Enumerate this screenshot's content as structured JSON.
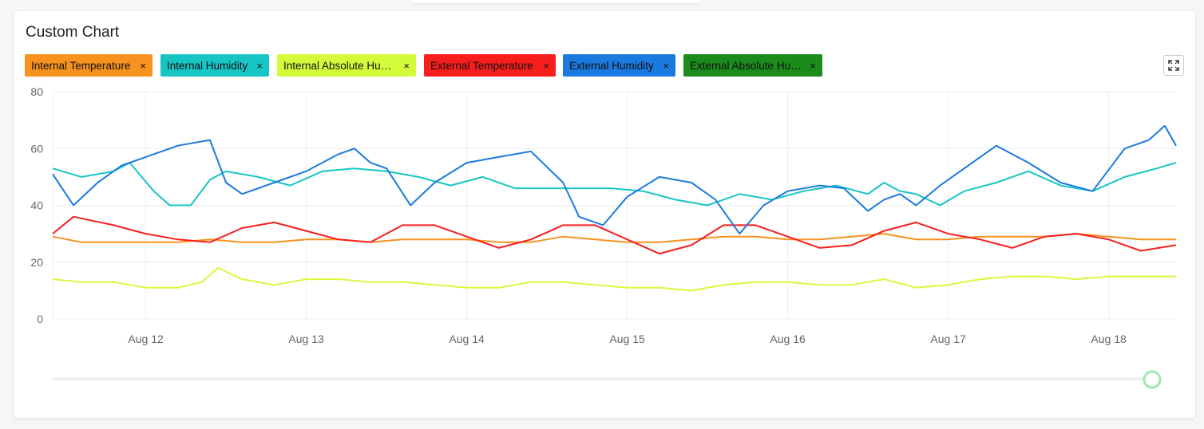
{
  "card": {
    "title": "Custom Chart"
  },
  "chips": [
    {
      "label": "Internal Temperature",
      "close": "×",
      "color": "#f7921e"
    },
    {
      "label": "Internal Humidity",
      "close": "×",
      "color": "#17c5c5"
    },
    {
      "label": "Internal Absolute Humidity",
      "close": "×",
      "color": "#d4fb3a"
    },
    {
      "label": "External Temperature",
      "close": "×",
      "color": "#f71e1e"
    },
    {
      "label": "External Humidity",
      "close": "×",
      "color": "#1b7ae0"
    },
    {
      "label": "External Absolute Humidity",
      "close": "×",
      "color": "#1b8c1b"
    }
  ],
  "icons": {
    "expand": "expand-icon"
  },
  "chart_data": {
    "type": "line",
    "x_unit": "day (August)",
    "x_range": [
      11.42,
      18.42
    ],
    "ylim": [
      0,
      80
    ],
    "y_ticks": [
      "0",
      "20",
      "40",
      "60",
      "80"
    ],
    "x_ticks": [
      {
        "value": 12,
        "label": "Aug 12"
      },
      {
        "value": 13,
        "label": "Aug 13"
      },
      {
        "value": 14,
        "label": "Aug 14"
      },
      {
        "value": 15,
        "label": "Aug 15"
      },
      {
        "value": 16,
        "label": "Aug 16"
      },
      {
        "value": 17,
        "label": "Aug 17"
      },
      {
        "value": 18,
        "label": "Aug 18"
      }
    ],
    "grid": true,
    "legend": "top-left removable chips",
    "series": [
      {
        "name": "Internal Temperature",
        "color": "#f7921e",
        "x": [
          11.42,
          11.6,
          11.8,
          12.0,
          12.2,
          12.4,
          12.6,
          12.8,
          13.0,
          13.2,
          13.4,
          13.6,
          13.8,
          14.0,
          14.2,
          14.4,
          14.6,
          14.8,
          15.0,
          15.2,
          15.4,
          15.6,
          15.8,
          16.0,
          16.2,
          16.4,
          16.6,
          16.8,
          17.0,
          17.2,
          17.4,
          17.6,
          17.8,
          18.0,
          18.2,
          18.42
        ],
        "y": [
          29,
          27,
          27,
          27,
          27,
          28,
          27,
          27,
          28,
          28,
          27,
          28,
          28,
          28,
          27,
          27,
          29,
          28,
          27,
          27,
          28,
          29,
          29,
          28,
          28,
          29,
          30,
          28,
          28,
          29,
          29,
          29,
          30,
          29,
          28,
          28
        ]
      },
      {
        "name": "Internal Humidity",
        "color": "#17c5c5",
        "x": [
          11.42,
          11.6,
          11.8,
          11.9,
          12.05,
          12.15,
          12.28,
          12.4,
          12.5,
          12.7,
          12.9,
          13.1,
          13.3,
          13.5,
          13.7,
          13.9,
          14.1,
          14.3,
          14.5,
          14.7,
          14.9,
          15.1,
          15.3,
          15.5,
          15.7,
          15.9,
          16.1,
          16.3,
          16.5,
          16.6,
          16.7,
          16.8,
          16.95,
          17.1,
          17.3,
          17.5,
          17.7,
          17.9,
          18.1,
          18.3,
          18.42
        ],
        "y": [
          53,
          50,
          52,
          55,
          45,
          40,
          40,
          49,
          52,
          50,
          47,
          52,
          53,
          52,
          50,
          47,
          50,
          46,
          46,
          46,
          46,
          45,
          42,
          40,
          44,
          42,
          45,
          47,
          44,
          48,
          45,
          44,
          40,
          45,
          48,
          52,
          47,
          45,
          50,
          53,
          55
        ]
      },
      {
        "name": "Internal Absolute Humidity",
        "color": "#d4fb3a",
        "x": [
          11.42,
          11.6,
          11.8,
          12.0,
          12.2,
          12.35,
          12.45,
          12.6,
          12.8,
          13.0,
          13.2,
          13.4,
          13.6,
          13.8,
          14.0,
          14.2,
          14.4,
          14.6,
          14.8,
          15.0,
          15.2,
          15.4,
          15.6,
          15.8,
          16.0,
          16.2,
          16.4,
          16.6,
          16.8,
          17.0,
          17.2,
          17.4,
          17.6,
          17.8,
          18.0,
          18.2,
          18.42
        ],
        "y": [
          14,
          13,
          13,
          11,
          11,
          13,
          18,
          14,
          12,
          14,
          14,
          13,
          13,
          12,
          11,
          11,
          13,
          13,
          12,
          11,
          11,
          10,
          12,
          13,
          13,
          12,
          12,
          14,
          11,
          12,
          14,
          15,
          15,
          14,
          15,
          15,
          15
        ]
      },
      {
        "name": "External Temperature",
        "color": "#f71e1e",
        "x": [
          11.42,
          11.55,
          11.8,
          12.0,
          12.2,
          12.4,
          12.6,
          12.8,
          13.0,
          13.2,
          13.4,
          13.6,
          13.8,
          14.0,
          14.2,
          14.4,
          14.6,
          14.8,
          15.0,
          15.2,
          15.4,
          15.6,
          15.8,
          16.0,
          16.2,
          16.4,
          16.6,
          16.8,
          17.0,
          17.2,
          17.4,
          17.6,
          17.8,
          18.0,
          18.2,
          18.42
        ],
        "y": [
          30,
          36,
          33,
          30,
          28,
          27,
          32,
          34,
          31,
          28,
          27,
          33,
          33,
          29,
          25,
          28,
          33,
          33,
          28,
          23,
          26,
          33,
          33,
          29,
          25,
          26,
          31,
          34,
          30,
          28,
          25,
          29,
          30,
          28,
          24,
          26
        ]
      },
      {
        "name": "External Humidity",
        "color": "#1b7ae0",
        "x": [
          11.42,
          11.55,
          11.7,
          11.85,
          12.0,
          12.2,
          12.4,
          12.5,
          12.6,
          12.8,
          13.0,
          13.2,
          13.3,
          13.4,
          13.5,
          13.65,
          13.8,
          14.0,
          14.2,
          14.4,
          14.6,
          14.7,
          14.85,
          15.0,
          15.2,
          15.4,
          15.55,
          15.7,
          15.85,
          16.0,
          16.2,
          16.35,
          16.5,
          16.6,
          16.7,
          16.8,
          16.95,
          17.1,
          17.3,
          17.5,
          17.7,
          17.9,
          18.1,
          18.25,
          18.35,
          18.42
        ],
        "y": [
          51,
          40,
          48,
          54,
          57,
          61,
          63,
          48,
          44,
          48,
          52,
          58,
          60,
          55,
          53,
          40,
          48,
          55,
          57,
          59,
          48,
          36,
          33,
          43,
          50,
          48,
          42,
          30,
          40,
          45,
          47,
          46,
          38,
          42,
          44,
          40,
          47,
          53,
          61,
          55,
          48,
          45,
          60,
          63,
          68,
          61
        ]
      }
    ]
  }
}
